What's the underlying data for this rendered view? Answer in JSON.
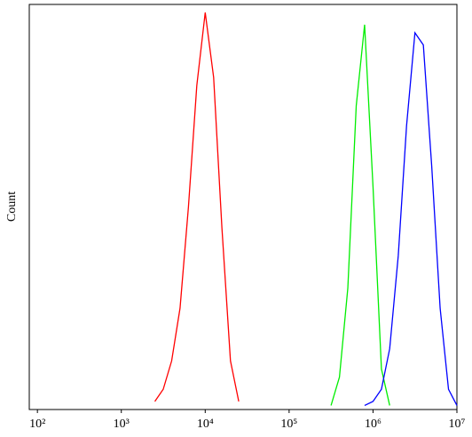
{
  "chart_data": {
    "type": "line",
    "y_label": "Count",
    "xscale": "log",
    "x": [
      2000,
      2510,
      3160,
      3980,
      5010,
      6310,
      7940,
      10000,
      12600,
      15800,
      20000,
      25100,
      31600,
      39800,
      50100,
      63100,
      79400,
      100000,
      126000,
      158000,
      200000,
      251000,
      316000,
      398000,
      501000,
      631000,
      794000,
      1000000,
      1260000,
      1580000,
      2000000,
      2510000,
      3160000,
      3980000,
      5010000,
      6310000,
      7940000,
      10000000
    ],
    "series": [
      {
        "color": "#ff0000",
        "values": [
          null,
          2,
          5,
          12,
          25,
          50,
          80,
          98,
          82,
          45,
          12,
          2,
          null,
          null,
          null,
          null,
          null,
          null,
          null,
          null,
          null,
          null,
          null,
          null,
          null,
          null,
          null,
          null,
          null,
          null,
          null,
          null,
          null,
          null,
          null,
          null,
          null,
          null
        ]
      },
      {
        "color": "#00ee00",
        "values": [
          null,
          null,
          null,
          null,
          null,
          null,
          null,
          null,
          null,
          null,
          null,
          null,
          null,
          null,
          null,
          null,
          null,
          null,
          null,
          null,
          null,
          null,
          1,
          8,
          30,
          75,
          95,
          55,
          10,
          1,
          null,
          null,
          null,
          null,
          null,
          null,
          null,
          null
        ]
      },
      {
        "color": "#0000ff",
        "values": [
          null,
          null,
          null,
          null,
          null,
          null,
          null,
          null,
          null,
          null,
          null,
          null,
          null,
          null,
          null,
          null,
          null,
          null,
          null,
          null,
          null,
          null,
          null,
          null,
          null,
          null,
          1,
          2,
          5,
          15,
          38,
          70,
          93,
          90,
          60,
          25,
          5,
          1
        ]
      }
    ],
    "xlim": [
      80,
      10000000
    ],
    "xticks": [
      {
        "value": 100,
        "label": "10²"
      },
      {
        "value": 1000,
        "label": "10³"
      },
      {
        "value": 10000,
        "label": "10⁴"
      },
      {
        "value": 100000,
        "label": "10⁵"
      },
      {
        "value": 1000000,
        "label": "10⁶"
      },
      {
        "value": 10000000,
        "label": "10⁷"
      }
    ],
    "ylim": [
      0,
      100
    ]
  }
}
